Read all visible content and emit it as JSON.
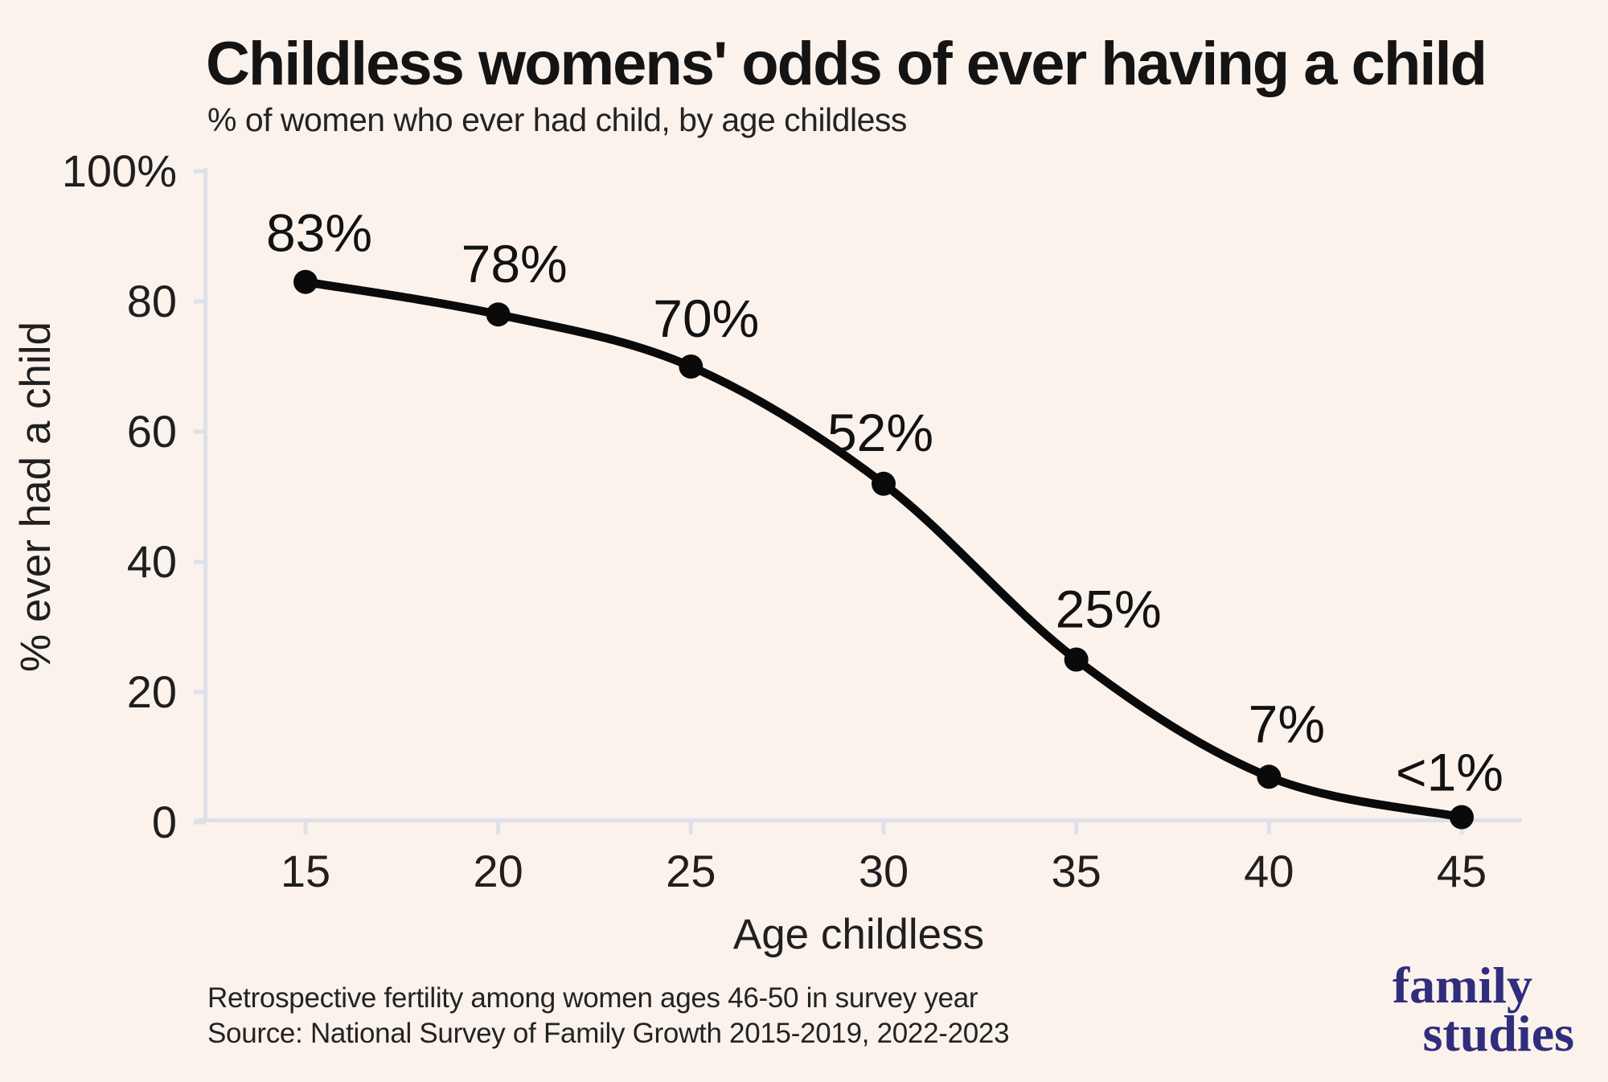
{
  "colors": {
    "background": "#fbf2ec",
    "axis": "#dfe0e9",
    "line": "#0a0a0a",
    "text": "#1c1c1c",
    "logo": "#302d7d"
  },
  "footer": {
    "note_line1": "Retrospective fertility among women ages 46-50 in survey year",
    "note_line2": "Source: National Survey of Family Growth 2015-2019, 2022-2023"
  },
  "logo": {
    "line1": "family",
    "line2": "studies"
  },
  "chart_data": {
    "type": "line",
    "title": "Childless womens' odds of ever having a child",
    "subtitle": "% of women who ever had child, by age childless",
    "xlabel": "Age childless",
    "ylabel": "% ever had a child",
    "x": [
      15,
      20,
      25,
      30,
      35,
      40,
      45
    ],
    "values": [
      83,
      78,
      70,
      52,
      25,
      7,
      0.8
    ],
    "point_labels": [
      "83%",
      "78%",
      "70%",
      "52%",
      "25%",
      "7%",
      "<1%"
    ],
    "label_dx": [
      17,
      20,
      19,
      -4,
      40,
      22,
      -15
    ],
    "label_dy": [
      -38,
      -40,
      -37,
      -41,
      -40,
      -43,
      -33
    ],
    "x_ticks": [
      15,
      20,
      25,
      30,
      35,
      40,
      45
    ],
    "x_tick_labels": [
      "15",
      "20",
      "25",
      "30",
      "35",
      "40",
      "45"
    ],
    "y_ticks": [
      0,
      20,
      40,
      60,
      80,
      100
    ],
    "y_tick_labels": [
      "0",
      "20",
      "40",
      "60",
      "80",
      "100%"
    ],
    "xlim": [
      12.1,
      46.6
    ],
    "ylim": [
      0,
      100
    ],
    "grid": false,
    "legend": "none",
    "line_smoothing": "spline",
    "marker": "filled-circle"
  }
}
